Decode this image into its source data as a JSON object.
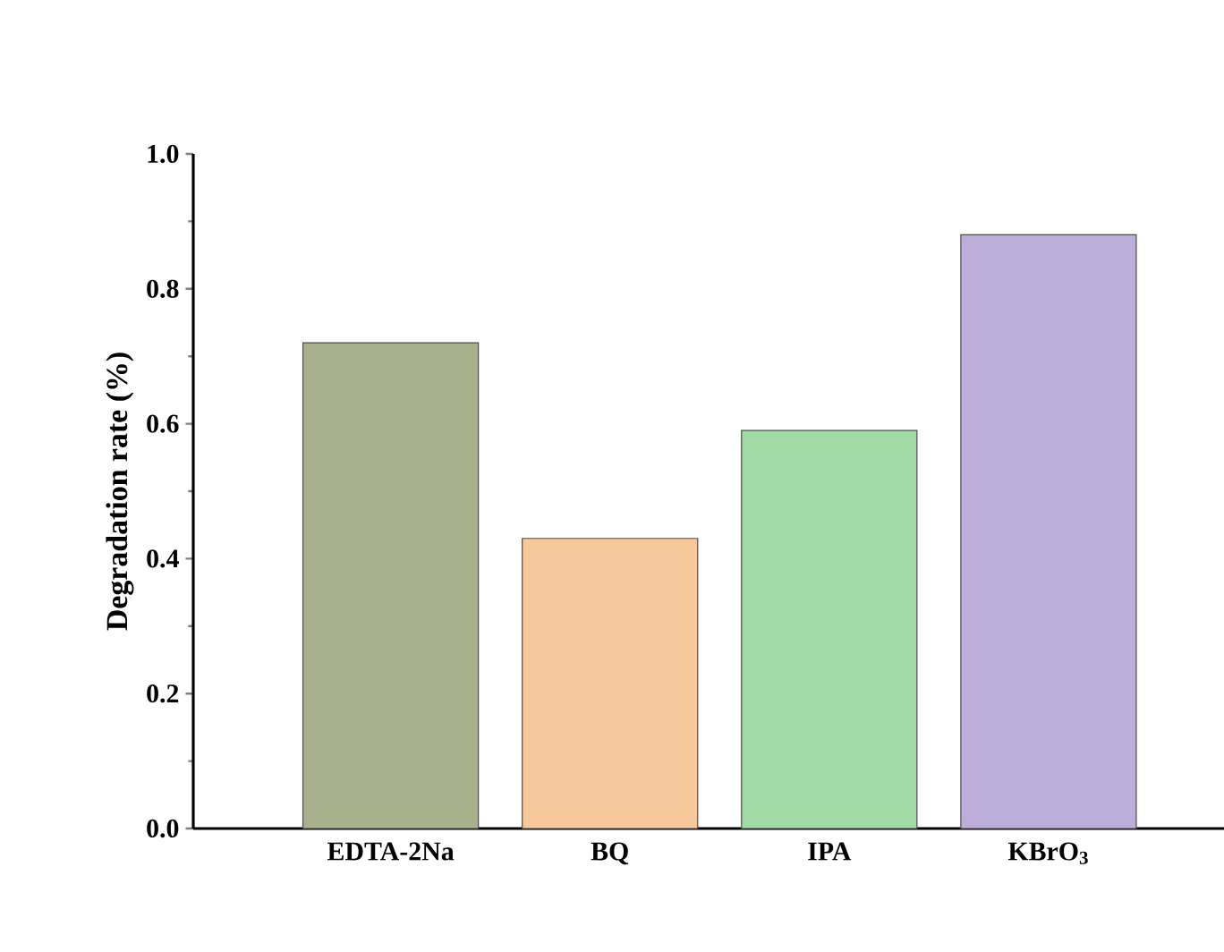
{
  "chart_data": {
    "type": "bar",
    "ylabel": "Degradation rate (%)",
    "categories": [
      "EDTA-2Na",
      "BQ",
      "IPA",
      "KBrO$_{3}$"
    ],
    "values": [
      0.72,
      0.43,
      0.59,
      0.88
    ],
    "colors": [
      "#a9b08c",
      "#f7c89b",
      "#a1dba3",
      "#bcaed9"
    ],
    "yticks": [
      {
        "value": 0,
        "label": "0.0"
      },
      {
        "value": 0.2,
        "label": "0.2"
      },
      {
        "value": 0.4,
        "label": "0.4"
      },
      {
        "value": 0.6,
        "label": "0.6"
      },
      {
        "value": 0.8,
        "label": "0.8"
      },
      {
        "value": 1.0,
        "label": "1.0"
      }
    ],
    "ylim": [
      0,
      1.0
    ]
  }
}
